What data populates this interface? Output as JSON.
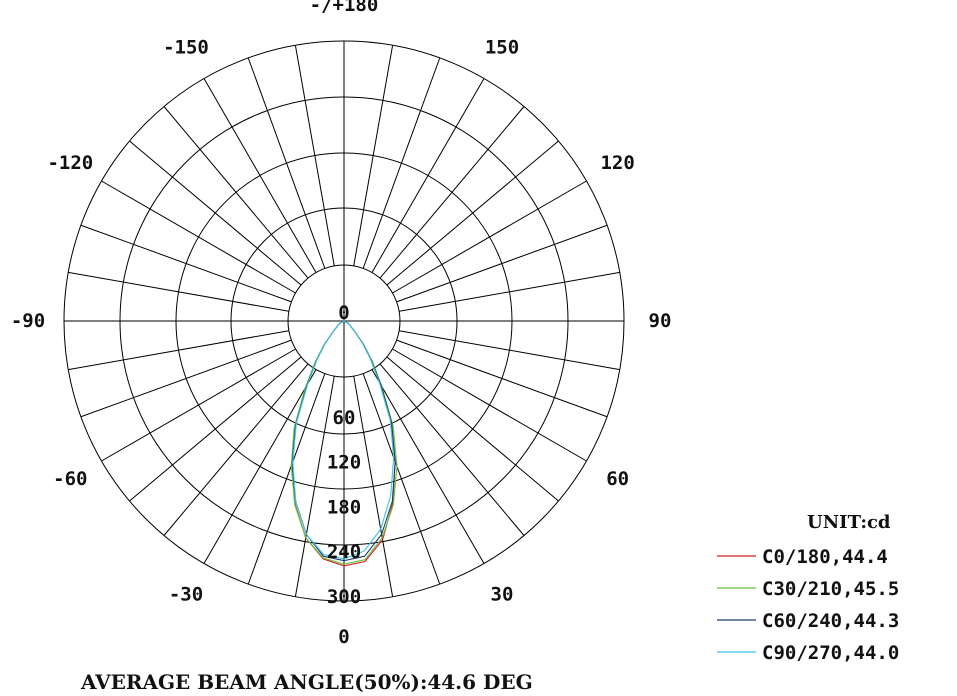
{
  "chart_data": {
    "type": "polar",
    "title": "",
    "unit_label": "UNIT:cd",
    "footer": "AVERAGE BEAM ANGLE(50%):44.6 DEG",
    "angle_labels": [
      {
        "angle": 180,
        "text": "-/+180"
      },
      {
        "angle": -150,
        "text": "-150"
      },
      {
        "angle": 150,
        "text": "150"
      },
      {
        "angle": -120,
        "text": "-120"
      },
      {
        "angle": 120,
        "text": "120"
      },
      {
        "angle": -90,
        "text": "-90"
      },
      {
        "angle": 90,
        "text": "90"
      },
      {
        "angle": -60,
        "text": "-60"
      },
      {
        "angle": 60,
        "text": "60"
      },
      {
        "angle": -30,
        "text": "-30"
      },
      {
        "angle": 30,
        "text": "30"
      },
      {
        "angle": 0,
        "text": "0"
      }
    ],
    "radial_ticks": [
      0,
      60,
      120,
      180,
      240,
      300
    ],
    "radial_max": 300,
    "angle_step": 10,
    "series": [
      {
        "name": "C0/180,44.4",
        "color": "#d42020",
        "points": [
          [
            -90,
            0
          ],
          [
            -60,
            6
          ],
          [
            -45,
            18
          ],
          [
            -40,
            34
          ],
          [
            -35,
            55
          ],
          [
            -30,
            84
          ],
          [
            -25,
            130
          ],
          [
            -20,
            172
          ],
          [
            -15,
            215
          ],
          [
            -10,
            250
          ],
          [
            -5,
            271
          ],
          [
            0,
            278
          ],
          [
            5,
            274
          ],
          [
            10,
            252
          ],
          [
            15,
            214
          ],
          [
            20,
            170
          ],
          [
            25,
            126
          ],
          [
            30,
            82
          ],
          [
            35,
            52
          ],
          [
            40,
            33
          ],
          [
            45,
            18
          ],
          [
            60,
            6
          ],
          [
            90,
            0
          ]
        ]
      },
      {
        "name": "C30/210,45.5",
        "color": "#6abf3c",
        "points": [
          [
            -90,
            0
          ],
          [
            -60,
            6
          ],
          [
            -45,
            19
          ],
          [
            -40,
            35
          ],
          [
            -35,
            57
          ],
          [
            -30,
            88
          ],
          [
            -25,
            134
          ],
          [
            -20,
            175
          ],
          [
            -15,
            216
          ],
          [
            -10,
            250
          ],
          [
            -5,
            270
          ],
          [
            0,
            276
          ],
          [
            5,
            272
          ],
          [
            10,
            250
          ],
          [
            15,
            216
          ],
          [
            20,
            176
          ],
          [
            25,
            132
          ],
          [
            30,
            86
          ],
          [
            35,
            56
          ],
          [
            40,
            34
          ],
          [
            45,
            19
          ],
          [
            60,
            6
          ],
          [
            90,
            0
          ]
        ]
      },
      {
        "name": "C60/240,44.3",
        "color": "#1f3d6e",
        "points": [
          [
            -90,
            0
          ],
          [
            -60,
            6
          ],
          [
            -45,
            18
          ],
          [
            -40,
            33
          ],
          [
            -35,
            54
          ],
          [
            -30,
            84
          ],
          [
            -25,
            130
          ],
          [
            -20,
            172
          ],
          [
            -15,
            212
          ],
          [
            -10,
            246
          ],
          [
            -5,
            268
          ],
          [
            0,
            272
          ],
          [
            5,
            268
          ],
          [
            10,
            246
          ],
          [
            15,
            212
          ],
          [
            20,
            170
          ],
          [
            25,
            128
          ],
          [
            30,
            84
          ],
          [
            35,
            54
          ],
          [
            40,
            33
          ],
          [
            45,
            18
          ],
          [
            60,
            6
          ],
          [
            90,
            0
          ]
        ]
      },
      {
        "name": "C90/270,44.0",
        "color": "#3fc4e8",
        "points": [
          [
            -90,
            0
          ],
          [
            -60,
            6
          ],
          [
            -45,
            18
          ],
          [
            -40,
            33
          ],
          [
            -35,
            53
          ],
          [
            -30,
            82
          ],
          [
            -25,
            128
          ],
          [
            -20,
            170
          ],
          [
            -15,
            212
          ],
          [
            -10,
            246
          ],
          [
            -5,
            266
          ],
          [
            0,
            270
          ],
          [
            5,
            262
          ],
          [
            10,
            240
          ],
          [
            15,
            205
          ],
          [
            20,
            165
          ],
          [
            25,
            124
          ],
          [
            30,
            80
          ],
          [
            35,
            52
          ],
          [
            40,
            32
          ],
          [
            45,
            18
          ],
          [
            60,
            6
          ],
          [
            90,
            0
          ]
        ]
      }
    ],
    "legend_position": "bottom-right",
    "grid": true
  }
}
